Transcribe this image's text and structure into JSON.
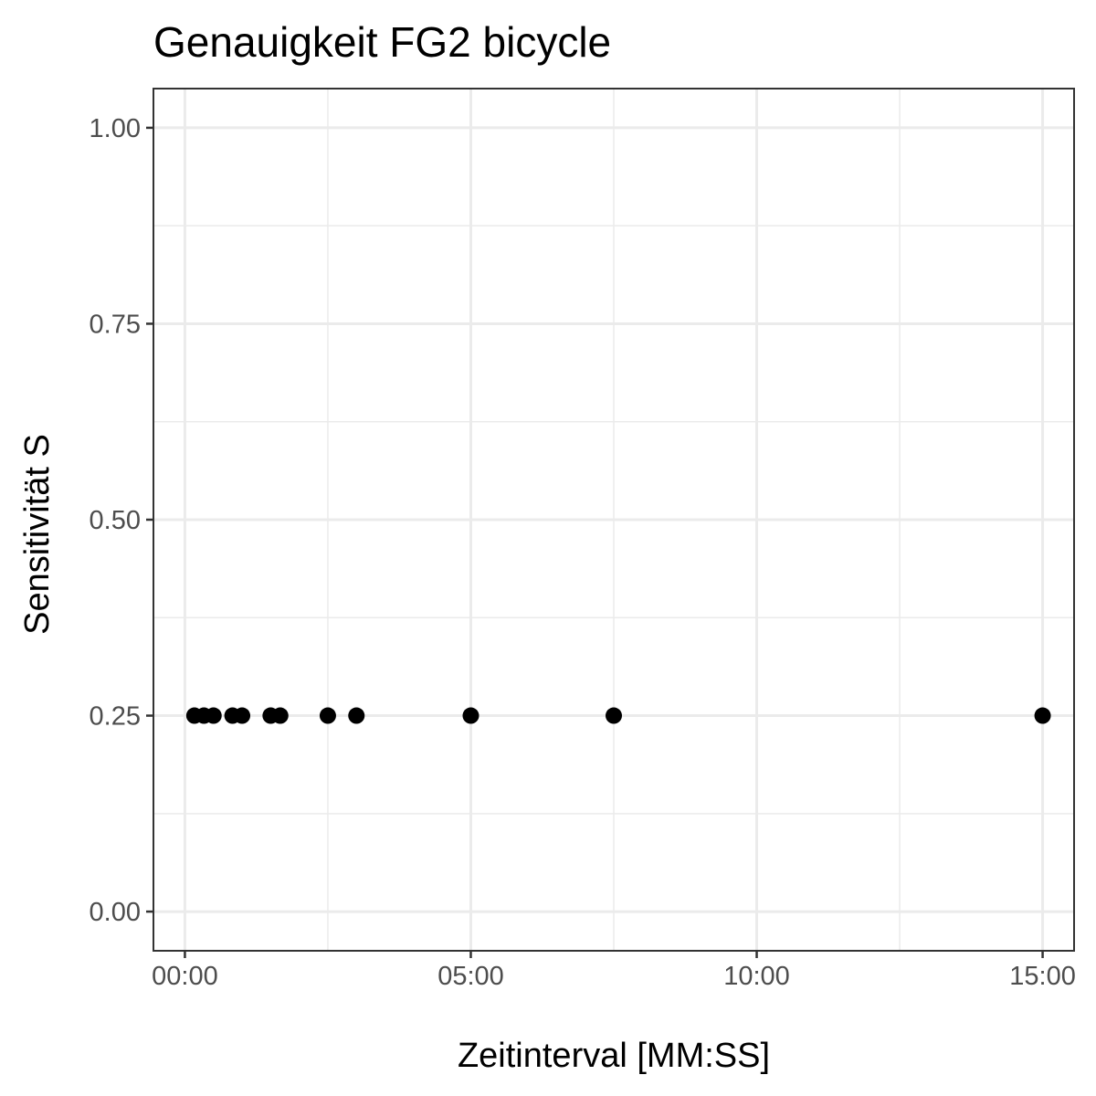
{
  "chart_data": {
    "type": "scatter",
    "title": "Genauigkeit FG2 bicycle",
    "xlabel": "Zeitinterval [MM:SS]",
    "ylabel": "Sensitivität S",
    "x_unit": "MM:SS",
    "xlim": [
      "-00:33",
      "15:33"
    ],
    "ylim": [
      -0.05,
      1.05
    ],
    "x_ticks": [
      "00:00",
      "05:00",
      "10:00",
      "15:00"
    ],
    "y_ticks": [
      "0.00",
      "0.25",
      "0.50",
      "0.75",
      "1.00"
    ],
    "grid": true,
    "legend": "none",
    "point_color": "#000000",
    "series": [
      {
        "points": [
          {
            "x": "00:10",
            "y": 0.25
          },
          {
            "x": "00:20",
            "y": 0.25
          },
          {
            "x": "00:30",
            "y": 0.25
          },
          {
            "x": "00:50",
            "y": 0.25
          },
          {
            "x": "01:00",
            "y": 0.25
          },
          {
            "x": "01:30",
            "y": 0.25
          },
          {
            "x": "01:40",
            "y": 0.25
          },
          {
            "x": "02:30",
            "y": 0.25
          },
          {
            "x": "03:00",
            "y": 0.25
          },
          {
            "x": "05:00",
            "y": 0.25
          },
          {
            "x": "07:30",
            "y": 0.25
          },
          {
            "x": "15:00",
            "y": 0.25
          }
        ]
      }
    ]
  }
}
